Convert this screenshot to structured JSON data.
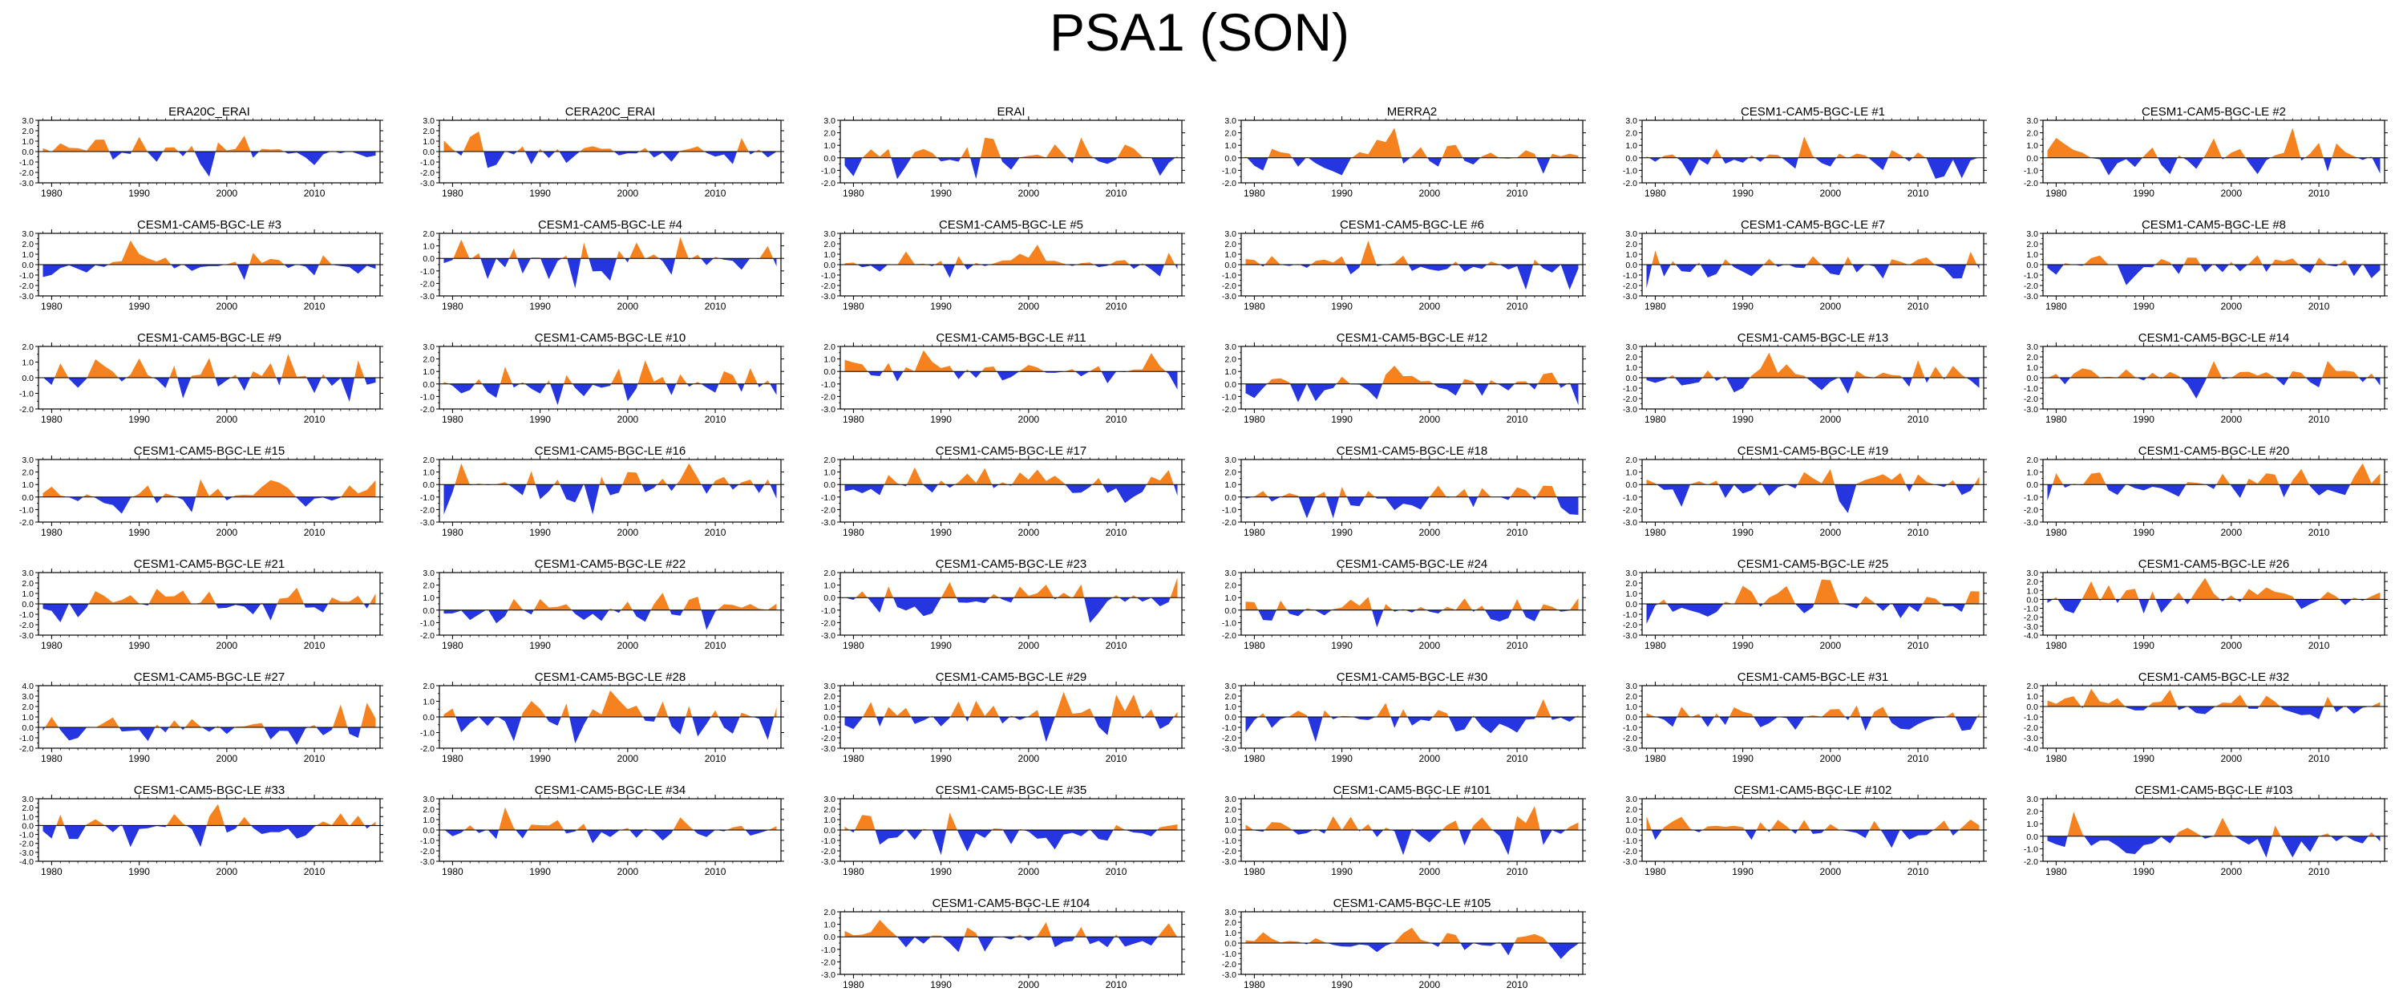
{
  "title": "PSA1 (SON)",
  "colors": {
    "positive": "#f5811f",
    "negative": "#2535e0",
    "frame": "#000000"
  },
  "chart_data": [
    {
      "type": "area",
      "title": "ERA20C_ERAI",
      "ylim": [
        -3,
        3
      ],
      "yticks": [
        "3.0",
        "2.0",
        "1.0",
        "0.0",
        "-1.0",
        "-2.0",
        "-3.0"
      ],
      "x_range": [
        1979,
        2017
      ],
      "xticks": [
        "1980",
        "1990",
        "2000",
        "2010"
      ],
      "seed": 1
    },
    {
      "type": "area",
      "title": "CERA20C_ERAI",
      "ylim": [
        -3,
        3
      ],
      "yticks": [
        "3.0",
        "2.0",
        "1.0",
        "0.0",
        "-1.0",
        "-2.0",
        "-3.0"
      ],
      "x_range": [
        1979,
        2017
      ],
      "xticks": [
        "1980",
        "1990",
        "2000",
        "2010"
      ],
      "seed": 2
    },
    {
      "type": "area",
      "title": "ERAI",
      "ylim": [
        -2,
        3
      ],
      "yticks": [
        "3.0",
        "2.0",
        "1.0",
        "0.0",
        "-1.0",
        "-2.0"
      ],
      "x_range": [
        1979,
        2017
      ],
      "xticks": [
        "1980",
        "1990",
        "2000",
        "2010"
      ],
      "seed": 3
    },
    {
      "type": "area",
      "title": "MERRA2",
      "ylim": [
        -2,
        3
      ],
      "yticks": [
        "3.0",
        "2.0",
        "1.0",
        "0.0",
        "-1.0",
        "-2.0"
      ],
      "x_range": [
        1979,
        2017
      ],
      "xticks": [
        "1980",
        "1990",
        "2000",
        "2010"
      ],
      "seed": 4
    },
    {
      "type": "area",
      "title": "CESM1-CAM5-BGC-LE #1",
      "ylim": [
        -2,
        3
      ],
      "yticks": [
        "3.0",
        "2.0",
        "1.0",
        "0.0",
        "-1.0",
        "-2.0"
      ],
      "x_range": [
        1979,
        2017
      ],
      "xticks": [
        "1980",
        "1990",
        "2000",
        "2010"
      ],
      "seed": 5
    },
    {
      "type": "area",
      "title": "CESM1-CAM5-BGC-LE #2",
      "ylim": [
        -2,
        3
      ],
      "yticks": [
        "3.0",
        "2.0",
        "1.0",
        "0.0",
        "-1.0",
        "-2.0"
      ],
      "x_range": [
        1979,
        2017
      ],
      "xticks": [
        "1980",
        "1990",
        "2000",
        "2010"
      ],
      "seed": 6
    },
    {
      "type": "area",
      "title": "CESM1-CAM5-BGC-LE #3",
      "ylim": [
        -3,
        3
      ],
      "yticks": [
        "3.0",
        "2.0",
        "1.0",
        "0.0",
        "-1.0",
        "-2.0",
        "-3.0"
      ],
      "x_range": [
        1979,
        2017
      ],
      "xticks": [
        "1980",
        "1990",
        "2000",
        "2010"
      ],
      "seed": 7
    },
    {
      "type": "area",
      "title": "CESM1-CAM5-BGC-LE #4",
      "ylim": [
        -3,
        2
      ],
      "yticks": [
        "2.0",
        "1.0",
        "0.0",
        "-1.0",
        "-2.0",
        "-3.0"
      ],
      "x_range": [
        1979,
        2017
      ],
      "xticks": [
        "1980",
        "1990",
        "2000",
        "2010"
      ],
      "seed": 8
    },
    {
      "type": "area",
      "title": "CESM1-CAM5-BGC-LE #5",
      "ylim": [
        -3,
        3
      ],
      "yticks": [
        "3.0",
        "2.0",
        "1.0",
        "0.0",
        "-1.0",
        "-2.0",
        "-3.0"
      ],
      "x_range": [
        1979,
        2017
      ],
      "xticks": [
        "1980",
        "1990",
        "2000",
        "2010"
      ],
      "seed": 9
    },
    {
      "type": "area",
      "title": "CESM1-CAM5-BGC-LE #6",
      "ylim": [
        -3,
        3
      ],
      "yticks": [
        "3.0",
        "2.0",
        "1.0",
        "0.0",
        "-1.0",
        "-2.0",
        "-3.0"
      ],
      "x_range": [
        1979,
        2017
      ],
      "xticks": [
        "1980",
        "1990",
        "2000",
        "2010"
      ],
      "seed": 10
    },
    {
      "type": "area",
      "title": "CESM1-CAM5-BGC-LE #7",
      "ylim": [
        -3,
        3
      ],
      "yticks": [
        "3.0",
        "2.0",
        "1.0",
        "0.0",
        "-1.0",
        "-2.0",
        "-3.0"
      ],
      "x_range": [
        1979,
        2017
      ],
      "xticks": [
        "1980",
        "1990",
        "2000",
        "2010"
      ],
      "seed": 11
    },
    {
      "type": "area",
      "title": "CESM1-CAM5-BGC-LE #8",
      "ylim": [
        -3,
        3
      ],
      "yticks": [
        "3.0",
        "2.0",
        "1.0",
        "0.0",
        "-1.0",
        "-2.0",
        "-3.0"
      ],
      "x_range": [
        1979,
        2017
      ],
      "xticks": [
        "1980",
        "1990",
        "2000",
        "2010"
      ],
      "seed": 12
    },
    {
      "type": "area",
      "title": "CESM1-CAM5-BGC-LE #9",
      "ylim": [
        -2,
        2
      ],
      "yticks": [
        "2.0",
        "1.0",
        "0.0",
        "-1.0",
        "-2.0"
      ],
      "x_range": [
        1979,
        2017
      ],
      "xticks": [
        "1980",
        "1990",
        "2000",
        "2010"
      ],
      "seed": 13
    },
    {
      "type": "area",
      "title": "CESM1-CAM5-BGC-LE #10",
      "ylim": [
        -2,
        3
      ],
      "yticks": [
        "3.0",
        "2.0",
        "1.0",
        "0.0",
        "-1.0",
        "-2.0"
      ],
      "x_range": [
        1979,
        2017
      ],
      "xticks": [
        "1980",
        "1990",
        "2000",
        "2010"
      ],
      "seed": 14
    },
    {
      "type": "area",
      "title": "CESM1-CAM5-BGC-LE #11",
      "ylim": [
        -3,
        2
      ],
      "yticks": [
        "2.0",
        "1.0",
        "0.0",
        "-1.0",
        "-2.0",
        "-3.0"
      ],
      "x_range": [
        1979,
        2017
      ],
      "xticks": [
        "1980",
        "1990",
        "2000",
        "2010"
      ],
      "seed": 15
    },
    {
      "type": "area",
      "title": "CESM1-CAM5-BGC-LE #12",
      "ylim": [
        -2,
        3
      ],
      "yticks": [
        "3.0",
        "2.0",
        "1.0",
        "0.0",
        "-1.0",
        "-2.0"
      ],
      "x_range": [
        1979,
        2017
      ],
      "xticks": [
        "1980",
        "1990",
        "2000",
        "2010"
      ],
      "seed": 16
    },
    {
      "type": "area",
      "title": "CESM1-CAM5-BGC-LE #13",
      "ylim": [
        -3,
        3
      ],
      "yticks": [
        "3.0",
        "2.0",
        "1.0",
        "0.0",
        "-1.0",
        "-2.0",
        "-3.0"
      ],
      "x_range": [
        1979,
        2017
      ],
      "xticks": [
        "1980",
        "1990",
        "2000",
        "2010"
      ],
      "seed": 17
    },
    {
      "type": "area",
      "title": "CESM1-CAM5-BGC-LE #14",
      "ylim": [
        -3,
        3
      ],
      "yticks": [
        "3.0",
        "2.0",
        "1.0",
        "0.0",
        "-1.0",
        "-2.0",
        "-3.0"
      ],
      "x_range": [
        1979,
        2017
      ],
      "xticks": [
        "1980",
        "1990",
        "2000",
        "2010"
      ],
      "seed": 18
    },
    {
      "type": "area",
      "title": "CESM1-CAM5-BGC-LE #15",
      "ylim": [
        -2,
        3
      ],
      "yticks": [
        "3.0",
        "2.0",
        "1.0",
        "0.0",
        "-1.0",
        "-2.0"
      ],
      "x_range": [
        1979,
        2017
      ],
      "xticks": [
        "1980",
        "1990",
        "2000",
        "2010"
      ],
      "seed": 19
    },
    {
      "type": "area",
      "title": "CESM1-CAM5-BGC-LE #16",
      "ylim": [
        -3,
        2
      ],
      "yticks": [
        "2.0",
        "1.0",
        "0.0",
        "-1.0",
        "-2.0",
        "-3.0"
      ],
      "x_range": [
        1979,
        2017
      ],
      "xticks": [
        "1980",
        "1990",
        "2000",
        "2010"
      ],
      "seed": 20
    },
    {
      "type": "area",
      "title": "CESM1-CAM5-BGC-LE #17",
      "ylim": [
        -3,
        2
      ],
      "yticks": [
        "2.0",
        "1.0",
        "0.0",
        "-1.0",
        "-2.0",
        "-3.0"
      ],
      "x_range": [
        1979,
        2017
      ],
      "xticks": [
        "1980",
        "1990",
        "2000",
        "2010"
      ],
      "seed": 21
    },
    {
      "type": "area",
      "title": "CESM1-CAM5-BGC-LE #18",
      "ylim": [
        -2,
        3
      ],
      "yticks": [
        "3.0",
        "2.0",
        "1.0",
        "0.0",
        "-1.0",
        "-2.0"
      ],
      "x_range": [
        1979,
        2017
      ],
      "xticks": [
        "1980",
        "1990",
        "2000",
        "2010"
      ],
      "seed": 22
    },
    {
      "type": "area",
      "title": "CESM1-CAM5-BGC-LE #19",
      "ylim": [
        -3,
        2
      ],
      "yticks": [
        "2.0",
        "1.0",
        "0.0",
        "-1.0",
        "-2.0",
        "-3.0"
      ],
      "x_range": [
        1979,
        2017
      ],
      "xticks": [
        "1980",
        "1990",
        "2000",
        "2010"
      ],
      "seed": 23
    },
    {
      "type": "area",
      "title": "CESM1-CAM5-BGC-LE #20",
      "ylim": [
        -3,
        2
      ],
      "yticks": [
        "2.0",
        "1.0",
        "0.0",
        "-1.0",
        "-2.0",
        "-3.0"
      ],
      "x_range": [
        1979,
        2017
      ],
      "xticks": [
        "1980",
        "1990",
        "2000",
        "2010"
      ],
      "seed": 24
    },
    {
      "type": "area",
      "title": "CESM1-CAM5-BGC-LE #21",
      "ylim": [
        -3,
        3
      ],
      "yticks": [
        "3.0",
        "2.0",
        "1.0",
        "0.0",
        "-1.0",
        "-2.0",
        "-3.0"
      ],
      "x_range": [
        1979,
        2017
      ],
      "xticks": [
        "1980",
        "1990",
        "2000",
        "2010"
      ],
      "seed": 25
    },
    {
      "type": "area",
      "title": "CESM1-CAM5-BGC-LE #22",
      "ylim": [
        -2,
        3
      ],
      "yticks": [
        "3.0",
        "2.0",
        "1.0",
        "0.0",
        "-1.0",
        "-2.0"
      ],
      "x_range": [
        1979,
        2017
      ],
      "xticks": [
        "1980",
        "1990",
        "2000",
        "2010"
      ],
      "seed": 26
    },
    {
      "type": "area",
      "title": "CESM1-CAM5-BGC-LE #23",
      "ylim": [
        -3,
        2
      ],
      "yticks": [
        "2.0",
        "1.0",
        "0.0",
        "-1.0",
        "-2.0",
        "-3.0"
      ],
      "x_range": [
        1979,
        2017
      ],
      "xticks": [
        "1980",
        "1990",
        "2000",
        "2010"
      ],
      "seed": 27
    },
    {
      "type": "area",
      "title": "CESM1-CAM5-BGC-LE #24",
      "ylim": [
        -2,
        3
      ],
      "yticks": [
        "3.0",
        "2.0",
        "1.0",
        "0.0",
        "-1.0",
        "-2.0"
      ],
      "x_range": [
        1979,
        2017
      ],
      "xticks": [
        "1980",
        "1990",
        "2000",
        "2010"
      ],
      "seed": 28
    },
    {
      "type": "area",
      "title": "CESM1-CAM5-BGC-LE #25",
      "ylim": [
        -3,
        3
      ],
      "yticks": [
        "3.0",
        "2.0",
        "1.0",
        "0.0",
        "-1.0",
        "-2.0",
        "-3.0"
      ],
      "x_range": [
        1979,
        2017
      ],
      "xticks": [
        "1980",
        "1990",
        "2000",
        "2010"
      ],
      "seed": 29
    },
    {
      "type": "area",
      "title": "CESM1-CAM5-BGC-LE #26",
      "ylim": [
        -4,
        3
      ],
      "yticks": [
        "3.0",
        "2.0",
        "1.0",
        "0.0",
        "-1.0",
        "-2.0",
        "-3.0",
        "-4.0"
      ],
      "x_range": [
        1979,
        2017
      ],
      "xticks": [
        "1980",
        "1990",
        "2000",
        "2010"
      ],
      "seed": 30
    },
    {
      "type": "area",
      "title": "CESM1-CAM5-BGC-LE #27",
      "ylim": [
        -2,
        4
      ],
      "yticks": [
        "4.0",
        "3.0",
        "2.0",
        "1.0",
        "0.0",
        "-1.0",
        "-2.0"
      ],
      "x_range": [
        1979,
        2017
      ],
      "xticks": [
        "1980",
        "1990",
        "2000",
        "2010"
      ],
      "seed": 31
    },
    {
      "type": "area",
      "title": "CESM1-CAM5-BGC-LE #28",
      "ylim": [
        -2,
        2
      ],
      "yticks": [
        "2.0",
        "1.0",
        "0.0",
        "-1.0",
        "-2.0"
      ],
      "x_range": [
        1979,
        2017
      ],
      "xticks": [
        "1980",
        "1990",
        "2000",
        "2010"
      ],
      "seed": 32
    },
    {
      "type": "area",
      "title": "CESM1-CAM5-BGC-LE #29",
      "ylim": [
        -3,
        3
      ],
      "yticks": [
        "3.0",
        "2.0",
        "1.0",
        "0.0",
        "-1.0",
        "-2.0",
        "-3.0"
      ],
      "x_range": [
        1979,
        2017
      ],
      "xticks": [
        "1980",
        "1990",
        "2000",
        "2010"
      ],
      "seed": 33
    },
    {
      "type": "area",
      "title": "CESM1-CAM5-BGC-LE #30",
      "ylim": [
        -3,
        3
      ],
      "yticks": [
        "3.0",
        "2.0",
        "1.0",
        "0.0",
        "-1.0",
        "-2.0",
        "-3.0"
      ],
      "x_range": [
        1979,
        2017
      ],
      "xticks": [
        "1980",
        "1990",
        "2000",
        "2010"
      ],
      "seed": 34
    },
    {
      "type": "area",
      "title": "CESM1-CAM5-BGC-LE #31",
      "ylim": [
        -3,
        3
      ],
      "yticks": [
        "3.0",
        "2.0",
        "1.0",
        "0.0",
        "-1.0",
        "-2.0",
        "-3.0"
      ],
      "x_range": [
        1979,
        2017
      ],
      "xticks": [
        "1980",
        "1990",
        "2000",
        "2010"
      ],
      "seed": 35
    },
    {
      "type": "area",
      "title": "CESM1-CAM5-BGC-LE #32",
      "ylim": [
        -4,
        2
      ],
      "yticks": [
        "2.0",
        "1.0",
        "0.0",
        "-1.0",
        "-2.0",
        "-3.0",
        "-4.0"
      ],
      "x_range": [
        1979,
        2017
      ],
      "xticks": [
        "1980",
        "1990",
        "2000",
        "2010"
      ],
      "seed": 36
    },
    {
      "type": "area",
      "title": "CESM1-CAM5-BGC-LE #33",
      "ylim": [
        -4,
        3
      ],
      "yticks": [
        "3.0",
        "2.0",
        "1.0",
        "0.0",
        "-1.0",
        "-2.0",
        "-3.0",
        "-4.0"
      ],
      "x_range": [
        1979,
        2017
      ],
      "xticks": [
        "1980",
        "1990",
        "2000",
        "2010"
      ],
      "seed": 37
    },
    {
      "type": "area",
      "title": "CESM1-CAM5-BGC-LE #34",
      "ylim": [
        -3,
        3
      ],
      "yticks": [
        "3.0",
        "2.0",
        "1.0",
        "0.0",
        "-1.0",
        "-2.0",
        "-3.0"
      ],
      "x_range": [
        1979,
        2017
      ],
      "xticks": [
        "1980",
        "1990",
        "2000",
        "2010"
      ],
      "seed": 38
    },
    {
      "type": "area",
      "title": "CESM1-CAM5-BGC-LE #35",
      "ylim": [
        -3,
        3
      ],
      "yticks": [
        "3.0",
        "2.0",
        "1.0",
        "0.0",
        "-1.0",
        "-2.0",
        "-3.0"
      ],
      "x_range": [
        1979,
        2017
      ],
      "xticks": [
        "1980",
        "1990",
        "2000",
        "2010"
      ],
      "seed": 39
    },
    {
      "type": "area",
      "title": "CESM1-CAM5-BGC-LE #101",
      "ylim": [
        -3,
        3
      ],
      "yticks": [
        "3.0",
        "2.0",
        "1.0",
        "0.0",
        "-1.0",
        "-2.0",
        "-3.0"
      ],
      "x_range": [
        1979,
        2017
      ],
      "xticks": [
        "1980",
        "1990",
        "2000",
        "2010"
      ],
      "seed": 40
    },
    {
      "type": "area",
      "title": "CESM1-CAM5-BGC-LE #102",
      "ylim": [
        -3,
        3
      ],
      "yticks": [
        "3.0",
        "2.0",
        "1.0",
        "0.0",
        "-1.0",
        "-2.0",
        "-3.0"
      ],
      "x_range": [
        1979,
        2017
      ],
      "xticks": [
        "1980",
        "1990",
        "2000",
        "2010"
      ],
      "seed": 41
    },
    {
      "type": "area",
      "title": "CESM1-CAM5-BGC-LE #103",
      "ylim": [
        -2,
        3
      ],
      "yticks": [
        "3.0",
        "2.0",
        "1.0",
        "0.0",
        "-1.0",
        "-2.0"
      ],
      "x_range": [
        1979,
        2017
      ],
      "xticks": [
        "1980",
        "1990",
        "2000",
        "2010"
      ],
      "seed": 42
    },
    {
      "type": "area",
      "title": "CESM1-CAM5-BGC-LE #104",
      "ylim": [
        -3,
        2
      ],
      "yticks": [
        "2.0",
        "1.0",
        "0.0",
        "-1.0",
        "-2.0",
        "-3.0"
      ],
      "x_range": [
        1979,
        2017
      ],
      "xticks": [
        "1980",
        "1990",
        "2000",
        "2010"
      ],
      "seed": 43
    },
    {
      "type": "area",
      "title": "CESM1-CAM5-BGC-LE #105",
      "ylim": [
        -3,
        3
      ],
      "yticks": [
        "3.0",
        "2.0",
        "1.0",
        "0.0",
        "-1.0",
        "-2.0",
        "-3.0"
      ],
      "x_range": [
        1979,
        2017
      ],
      "xticks": [
        "1980",
        "1990",
        "2000",
        "2010"
      ],
      "seed": 44
    }
  ]
}
